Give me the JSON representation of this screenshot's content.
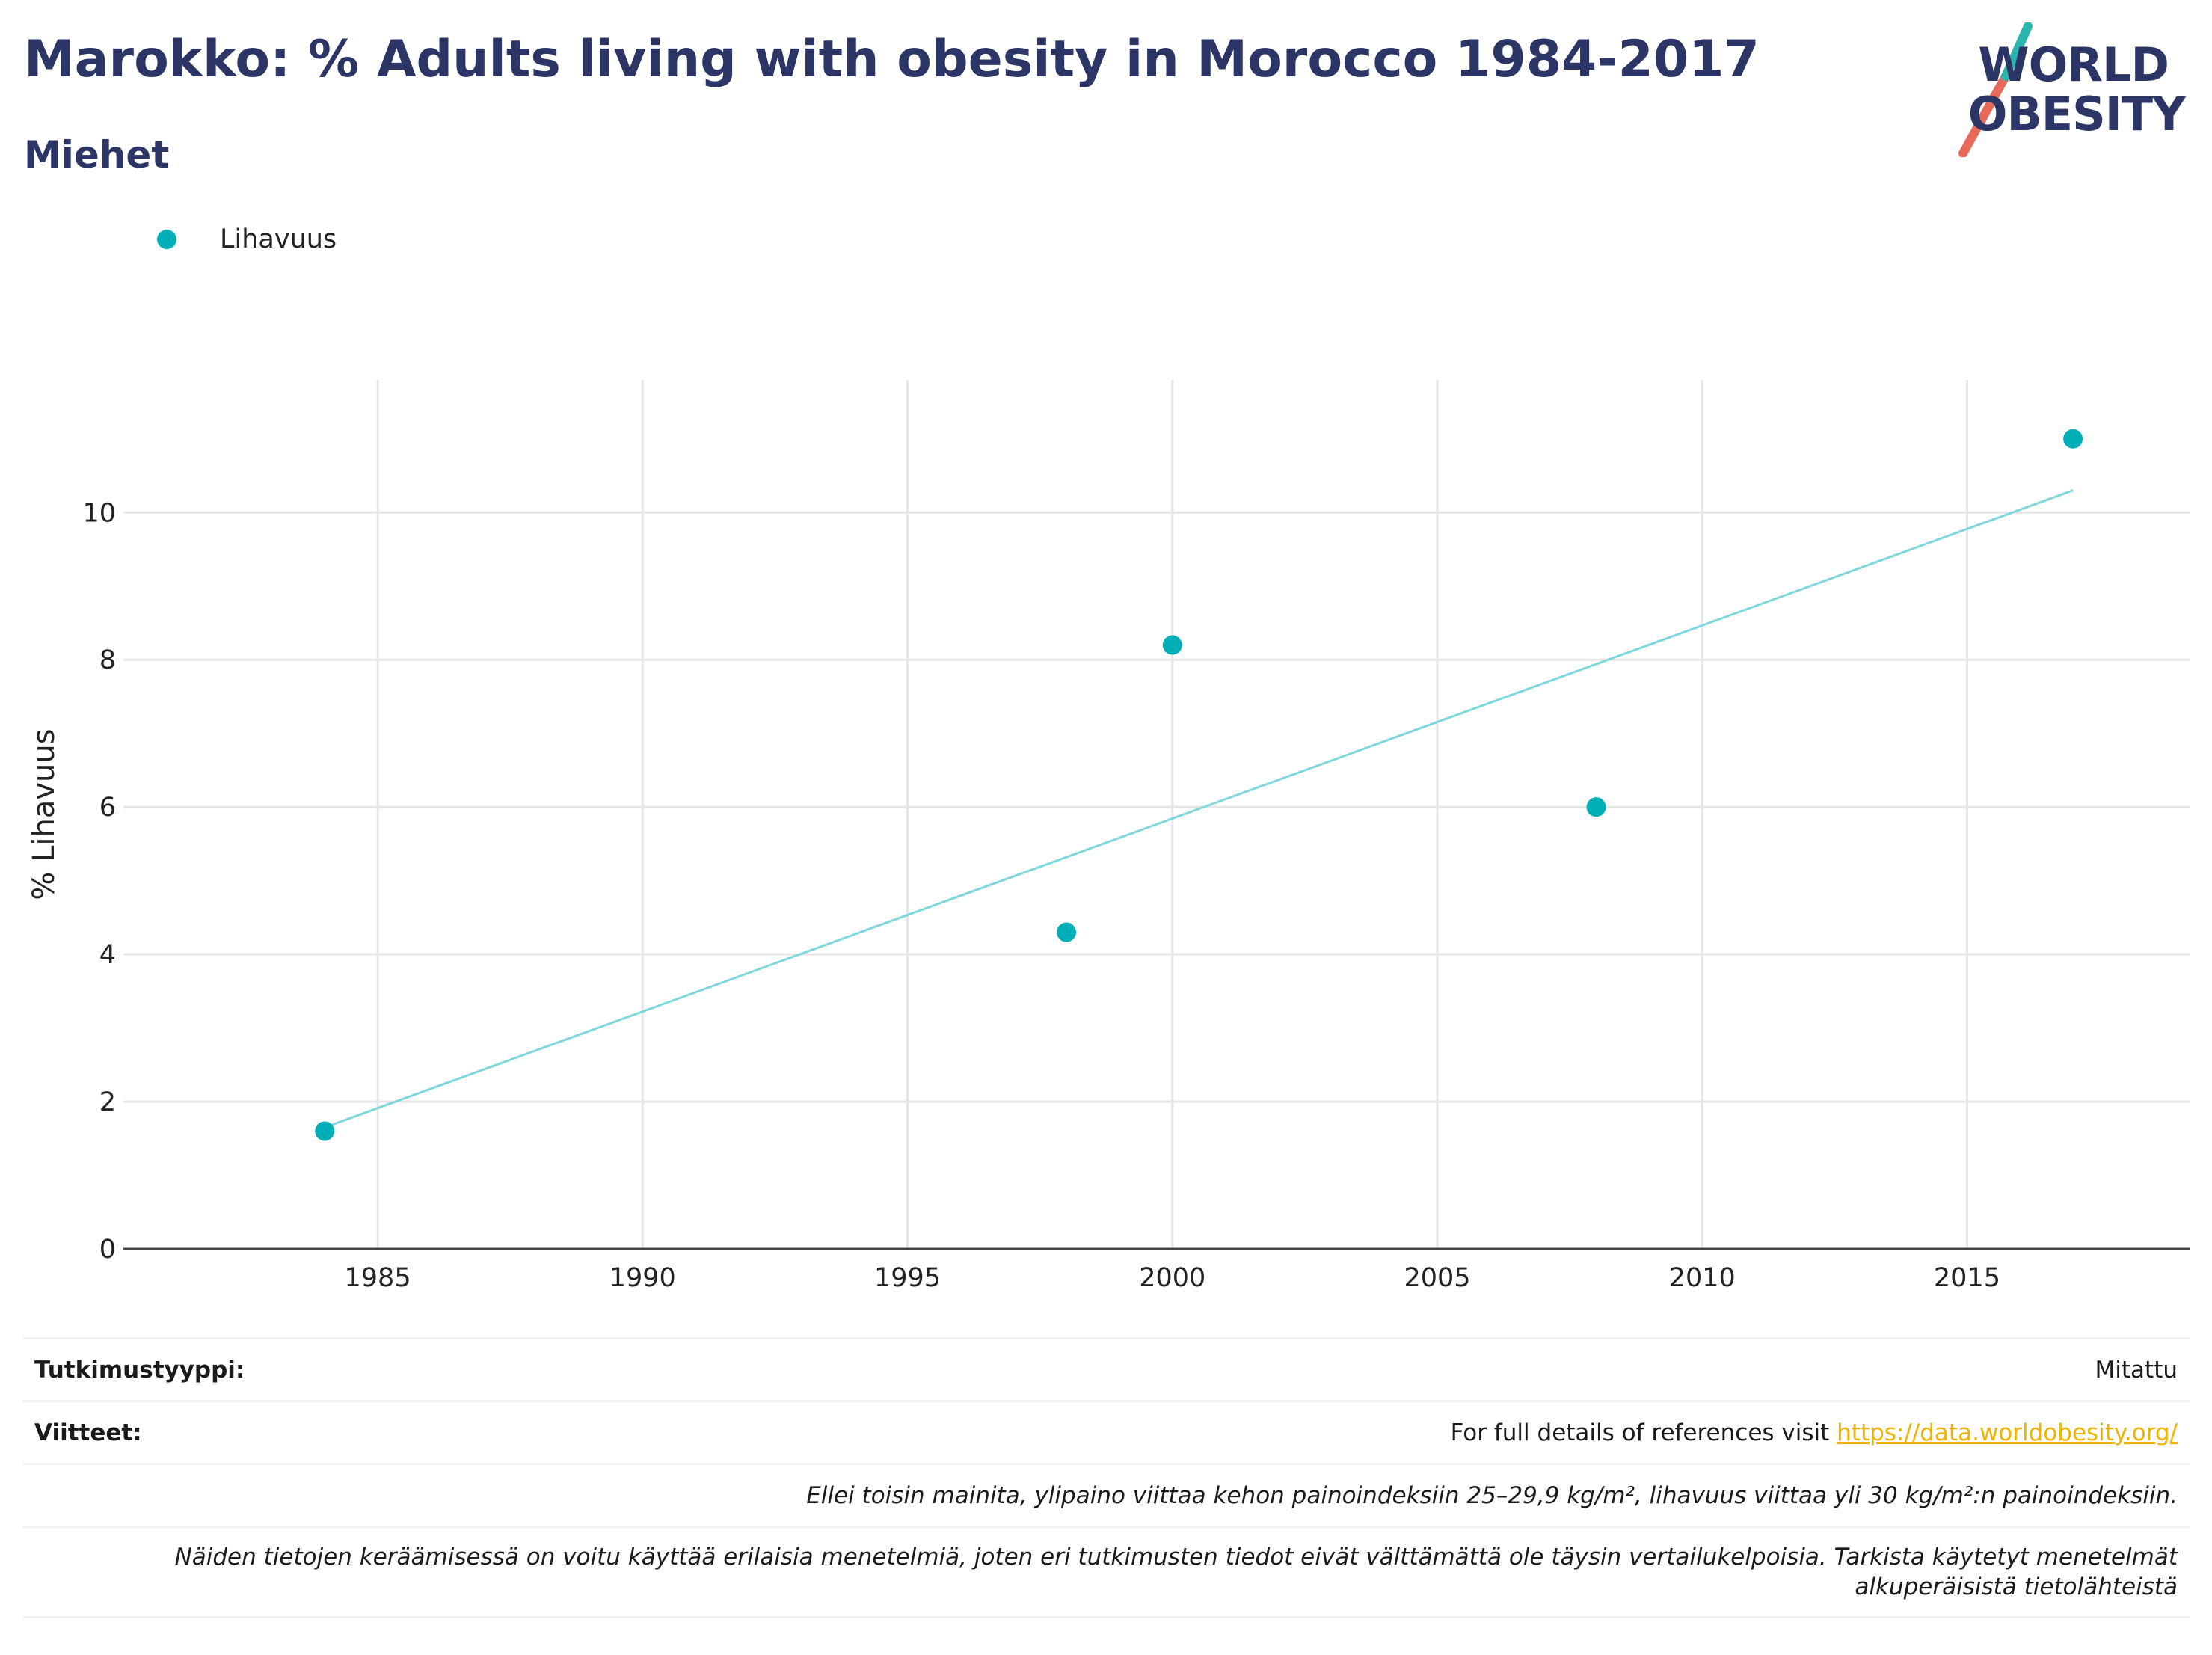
{
  "title": "Marokko: % Adults living with obesity in Morocco 1984-2017",
  "subtitle": "Miehet",
  "logo": {
    "line1": "WORLD",
    "line2": "OBESITY"
  },
  "colors": {
    "series": "#00aeb7",
    "trend": "#7fd6dc",
    "title": "#2b3667",
    "link": "#f0b400"
  },
  "chart_data": {
    "type": "scatter",
    "ylabel": "% Lihavuus",
    "xlabel": "",
    "xlim": [
      1980.2,
      2019.2
    ],
    "ylim": [
      0,
      11.8
    ],
    "x_ticks": [
      1985,
      1990,
      1995,
      2000,
      2005,
      2010,
      2015
    ],
    "y_ticks": [
      0,
      2,
      4,
      6,
      8,
      10
    ],
    "grid": true,
    "legend_position": "top-left",
    "series": [
      {
        "name": "Lihavuus",
        "x": [
          1984,
          1998,
          2000,
          2008,
          2017
        ],
        "y": [
          1.6,
          4.3,
          8.2,
          6.0,
          11.0
        ]
      }
    ],
    "trendline": {
      "x": [
        1984,
        2017
      ],
      "y": [
        1.65,
        10.3
      ]
    }
  },
  "table": {
    "study_type_label": "Tutkimustyyppi:",
    "study_type_value": "Mitattu",
    "references_label": "Viitteet:",
    "references_text": "For full details of references visit ",
    "references_link": "https://data.worldobesity.org/",
    "note1": "Ellei toisin mainita, ylipaino viittaa kehon painoindeksiin 25–29,9 kg/m², lihavuus viittaa yli 30 kg/m²:n painoindeksiin.",
    "note2_line1": "Näiden tietojen keräämisessä on voitu käyttää erilaisia menetelmiä, joten eri tutkimusten tiedot eivät välttämättä ole täysin vertailukelpoisia. Tarkista käytetyt menetelmät",
    "note2_line2": "alkuperäisistä tietolähteistä"
  }
}
